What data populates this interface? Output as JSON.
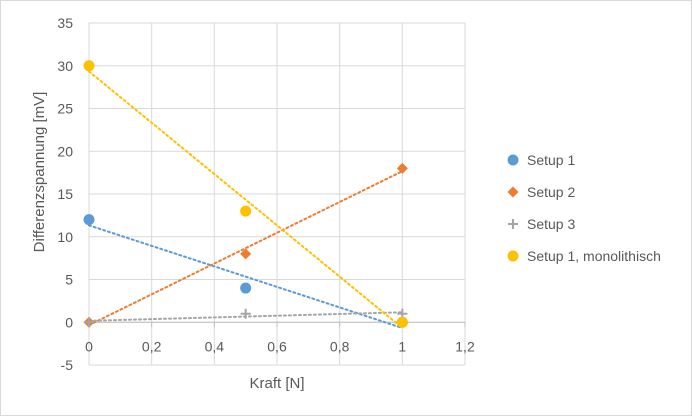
{
  "chart_data": {
    "type": "scatter",
    "title": "",
    "xlabel": "Kraft [N]",
    "ylabel": "Differenzspannung [mV]",
    "xlim": [
      0,
      1.2
    ],
    "ylim": [
      -5,
      35
    ],
    "xticks": [
      0,
      0.2,
      0.4,
      0.6,
      0.8,
      1,
      1.2
    ],
    "xtick_labels": [
      "0",
      "0,2",
      "0,4",
      "0,6",
      "0,8",
      "1",
      "1,2"
    ],
    "yticks": [
      -5,
      0,
      5,
      10,
      15,
      20,
      25,
      30,
      35
    ],
    "ytick_labels": [
      "-5",
      "0",
      "5",
      "10",
      "15",
      "20",
      "25",
      "30",
      "35"
    ],
    "grid": true,
    "legend_position": "right",
    "series": [
      {
        "name": "Setup 1",
        "marker": "circle",
        "color": "#5b9bd5",
        "trendline": "linear dotted",
        "points": [
          [
            0,
            12
          ],
          [
            0.5,
            4
          ],
          [
            1,
            0
          ]
        ]
      },
      {
        "name": "Setup 2",
        "marker": "diamond",
        "color": "#ed7d31",
        "trendline": "linear dotted",
        "points": [
          [
            0,
            0
          ],
          [
            0.5,
            8
          ],
          [
            1,
            18
          ]
        ]
      },
      {
        "name": "Setup 3",
        "marker": "plus",
        "color": "#a5a5a5",
        "trendline": "linear dotted",
        "points": [
          [
            0,
            0
          ],
          [
            0.5,
            1
          ],
          [
            1,
            1
          ]
        ]
      },
      {
        "name": "Setup 1, monolithisch",
        "marker": "circle",
        "color": "#ffc000",
        "trendline": "linear dotted",
        "points": [
          [
            0,
            30
          ],
          [
            0.5,
            13
          ],
          [
            1,
            0
          ]
        ]
      }
    ]
  }
}
